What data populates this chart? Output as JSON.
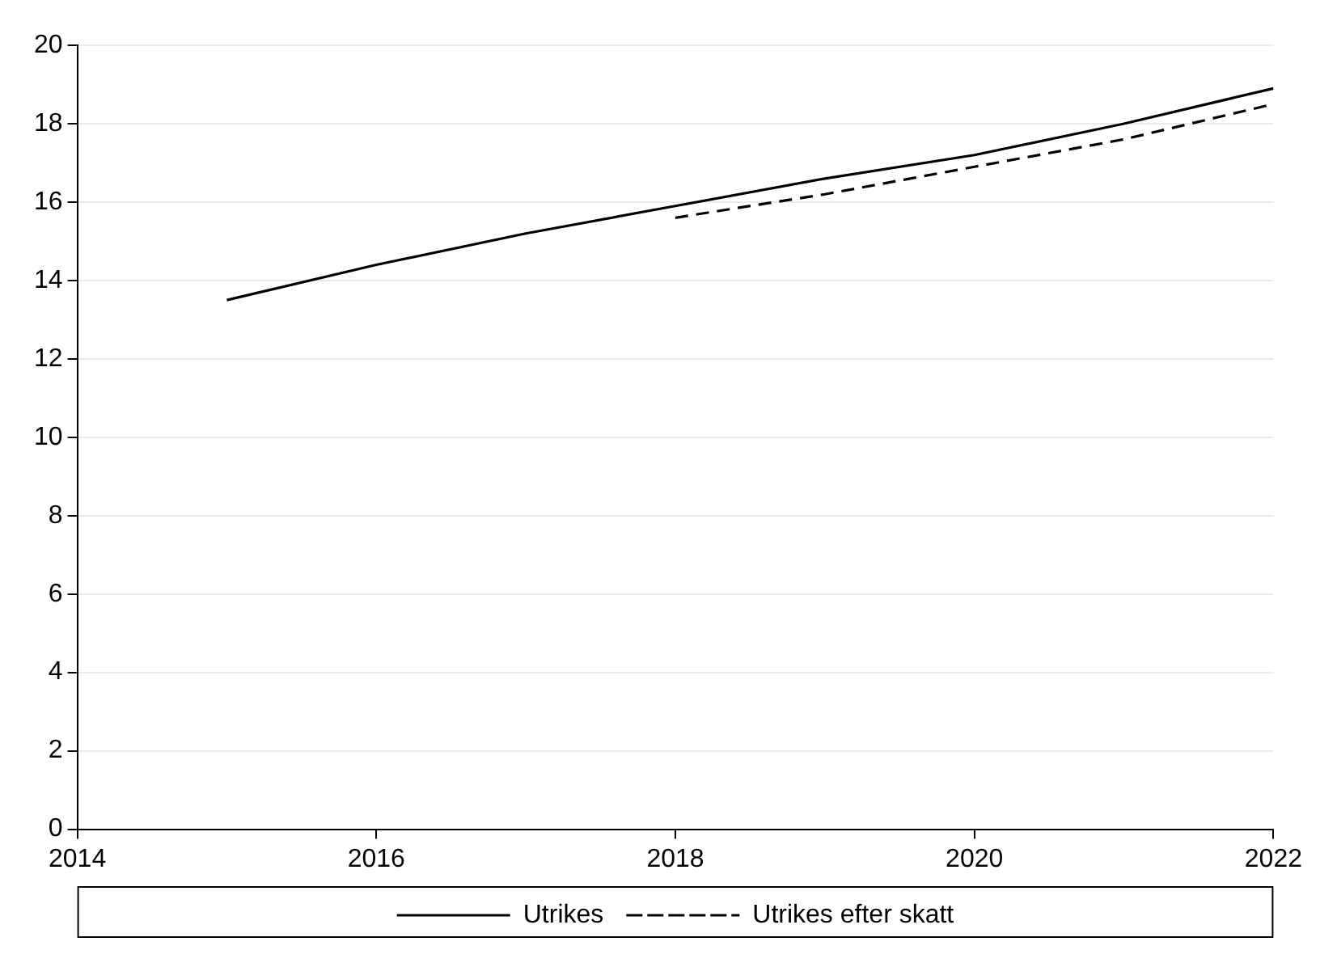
{
  "chart_data": {
    "type": "line",
    "x": [
      2015,
      2016,
      2017,
      2018,
      2019,
      2020,
      2021,
      2022
    ],
    "series": [
      {
        "name": "Utrikes",
        "color": "#000000",
        "line_style": "solid",
        "values": [
          13.5,
          14.4,
          15.2,
          15.9,
          16.6,
          17.2,
          18.0,
          18.9
        ]
      },
      {
        "name": "Utrikes efter skatt",
        "color": "#000000",
        "line_style": "dashed",
        "values": [
          null,
          null,
          null,
          15.6,
          16.2,
          16.9,
          17.6,
          18.5
        ]
      }
    ],
    "xlim": [
      2014,
      2022
    ],
    "xticks": [
      2014,
      2016,
      2018,
      2020,
      2022
    ],
    "ylim": [
      0,
      20
    ],
    "yticks": [
      0,
      2,
      4,
      6,
      8,
      10,
      12,
      14,
      16,
      18,
      20
    ],
    "grid": "y",
    "legend": "bottom",
    "marker": "none"
  }
}
